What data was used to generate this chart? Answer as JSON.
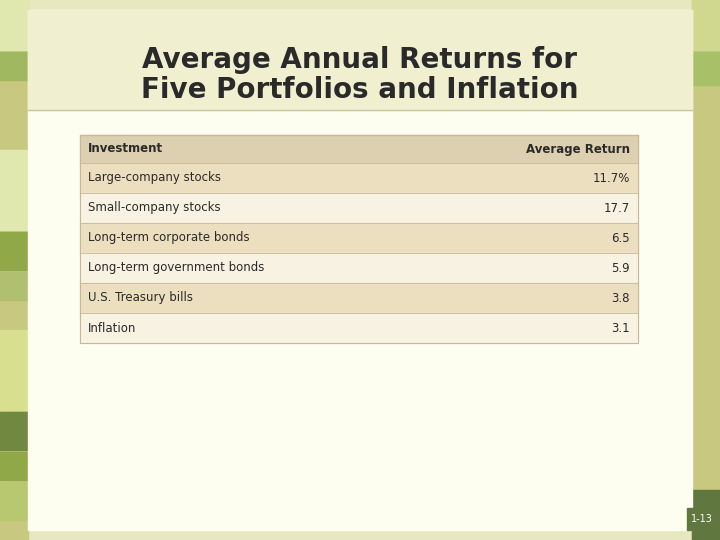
{
  "title_line1": "Average Annual Returns for",
  "title_line2": "Five Portfolios and Inflation",
  "title_fontsize": 20,
  "title_color": "#2a2a2a",
  "page_label": "1-13",
  "bg_outer": "#e8e8c0",
  "bg_inner": "#fdfdf0",
  "title_bg": "#f0f0d0",
  "table_header_bg": "#ddd0b0",
  "table_row_shaded": "#ecdfc0",
  "table_row_unshaded": "#f8f2e2",
  "table_border_color": "#c8b898",
  "col_headers": [
    "Investment",
    "Average Return"
  ],
  "rows": [
    [
      "Large-company stocks",
      "11.7%"
    ],
    [
      "Small-company stocks",
      "17.7"
    ],
    [
      "Long-term corporate bonds",
      "6.5"
    ],
    [
      "Long-term government bonds",
      "5.9"
    ],
    [
      "U.S. Treasury bills",
      "3.8"
    ],
    [
      "Inflation",
      "3.1"
    ]
  ],
  "row_shaded": [
    true,
    false,
    true,
    false,
    true,
    false
  ],
  "font_size_table": 8.5,
  "font_size_header": 8.5,
  "accent_yellow_green": "#d8e080",
  "accent_medium_green": "#90a850",
  "accent_dark_green": "#607840",
  "accent_light_sage": "#b0c898",
  "left_border_color": "#c8c880",
  "right_border_color": "#c8c880"
}
